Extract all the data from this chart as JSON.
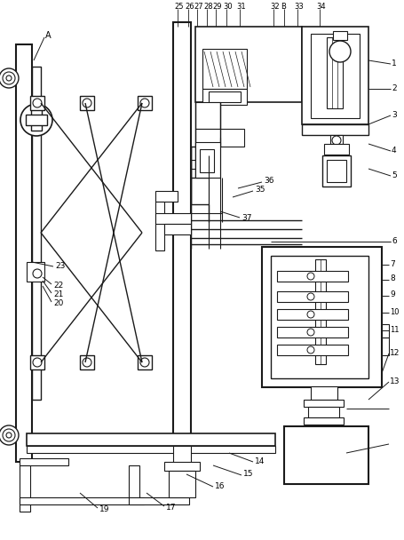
{
  "bg_color": "#ffffff",
  "line_color": "#1a1a1a",
  "fig_width": 4.55,
  "fig_height": 6.08
}
